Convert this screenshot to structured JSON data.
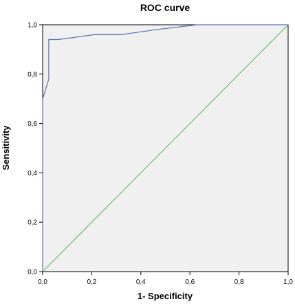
{
  "chart_data": {
    "type": "line",
    "title": "ROC curve",
    "xlabel": "1- Specificity",
    "ylabel": "Sensitivity",
    "xlim": [
      0,
      1
    ],
    "ylim": [
      0,
      1
    ],
    "x_ticks": [
      "0,0",
      "0,2",
      "0,4",
      "0,6",
      "0,8",
      "1,0"
    ],
    "y_ticks": [
      "0,0",
      "0,2",
      "0,4",
      "0,6",
      "0,8",
      "1,0"
    ],
    "grid": false,
    "plot_background": "#f0f0f0",
    "series": [
      {
        "color": "#5b6fb5",
        "x": [
          0.0,
          0.0,
          0.025,
          0.025,
          0.065,
          0.21,
          0.32,
          0.46,
          0.63,
          1.0
        ],
        "y": [
          0.0,
          0.7,
          0.78,
          0.94,
          0.94,
          0.96,
          0.96,
          0.98,
          1.0,
          1.0
        ]
      },
      {
        "color": "#5ac85a",
        "x": [
          0.0,
          1.0
        ],
        "y": [
          0.0,
          1.0
        ]
      }
    ]
  }
}
